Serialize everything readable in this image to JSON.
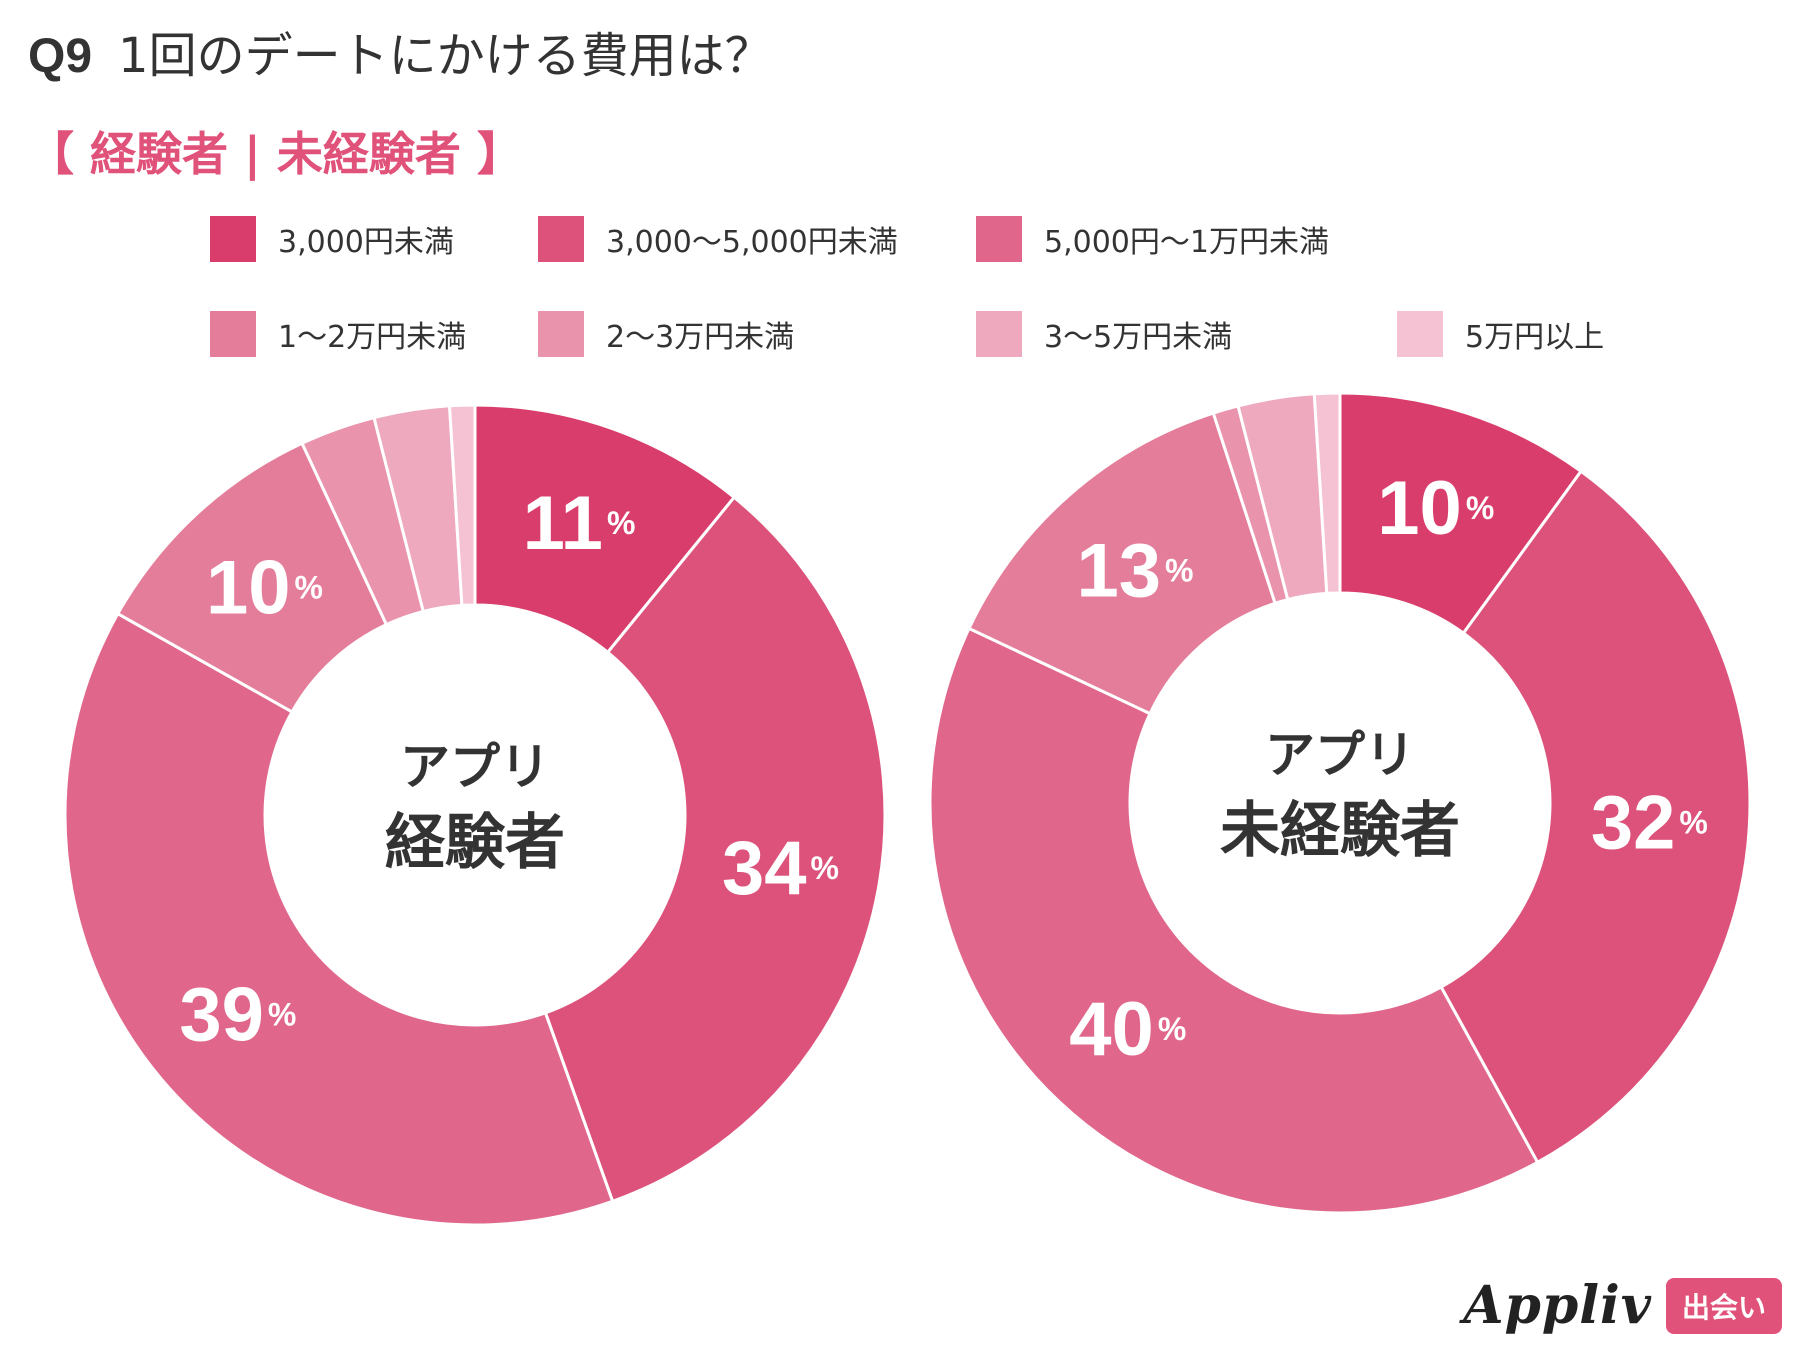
{
  "header": {
    "question_number": "Q9",
    "question_text": "1回のデートにかける費用は？",
    "subtitle": "【 経験者 | 未経験者 】"
  },
  "legend": [
    {
      "label": "3,000円未満",
      "color": "#d93d6b"
    },
    {
      "label": "3,000〜5,000円未満",
      "color": "#dc527b"
    },
    {
      "label": "5,000円〜1万円未満",
      "color": "#e0678b"
    },
    {
      "label": "1〜2万円未満",
      "color": "#e47d9a"
    },
    {
      "label": "2〜3万円未満",
      "color": "#e993ad"
    },
    {
      "label": "3〜5万円未満",
      "color": "#eea9bf"
    },
    {
      "label": "5万円以上",
      "color": "#f4c2d2"
    }
  ],
  "chart_data": [
    {
      "type": "pie",
      "variant": "donut",
      "center_label": [
        "アプリ",
        "経験者"
      ],
      "categories": [
        "3,000円未満",
        "3,000〜5,000円未満",
        "5,000円〜1万円未満",
        "1〜2万円未満",
        "2〜3万円未満",
        "3〜5万円未満",
        "5万円以上"
      ],
      "values": [
        11,
        34,
        39,
        10,
        3,
        3,
        1
      ],
      "data_labels": [
        "11",
        "34",
        "39",
        "10",
        "",
        "",
        ""
      ],
      "unit": "%"
    },
    {
      "type": "pie",
      "variant": "donut",
      "center_label": [
        "アプリ",
        "未経験者"
      ],
      "categories": [
        "3,000円未満",
        "3,000〜5,000円未満",
        "5,000円〜1万円未満",
        "1〜2万円未満",
        "2〜3万円未満",
        "3〜5万円未満",
        "5万円以上"
      ],
      "values": [
        10,
        32,
        40,
        13,
        1,
        3,
        1
      ],
      "data_labels": [
        "10",
        "32",
        "40",
        "13",
        "",
        "",
        ""
      ],
      "unit": "%"
    }
  ],
  "brand": {
    "name": "Appliv",
    "badge": "出会い"
  }
}
